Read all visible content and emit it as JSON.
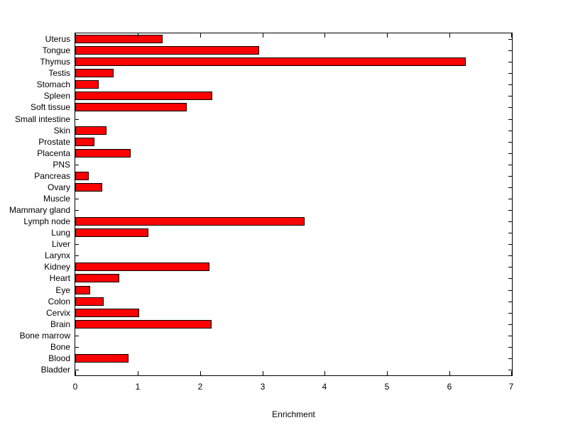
{
  "figure": {
    "background_color": "#ffffff",
    "text_color": "#000000"
  },
  "chart_data": {
    "type": "bar",
    "orientation": "horizontal",
    "title": "",
    "xlabel": "Enrichment",
    "ylabel": "",
    "xlim": [
      0,
      7
    ],
    "x_ticks": [
      0,
      1,
      2,
      3,
      4,
      5,
      6,
      7
    ],
    "grid": false,
    "legend": "none",
    "bar_color": "#ff0000",
    "bar_edge_color": "#000000",
    "categories": [
      "Uterus",
      "Tongue",
      "Thymus",
      "Testis",
      "Stomach",
      "Spleen",
      "Soft tissue",
      "Small intestine",
      "Skin",
      "Prostate",
      "Placenta",
      "PNS",
      "Pancreas",
      "Ovary",
      "Muscle",
      "Mammary gland",
      "Lymph node",
      "Lung",
      "Liver",
      "Larynx",
      "Kidney",
      "Heart",
      "Eye",
      "Colon",
      "Cervix",
      "Brain",
      "Bone marrow",
      "Bone",
      "Blood",
      "Bladder"
    ],
    "values": [
      1.4,
      2.95,
      6.26,
      0.62,
      0.38,
      2.2,
      1.79,
      0,
      0.5,
      0.31,
      0.89,
      0,
      0.22,
      0.43,
      0,
      0,
      3.68,
      1.17,
      0,
      0,
      2.15,
      0.71,
      0.24,
      0.46,
      1.03,
      2.19,
      0,
      0,
      0.85,
      0
    ]
  }
}
